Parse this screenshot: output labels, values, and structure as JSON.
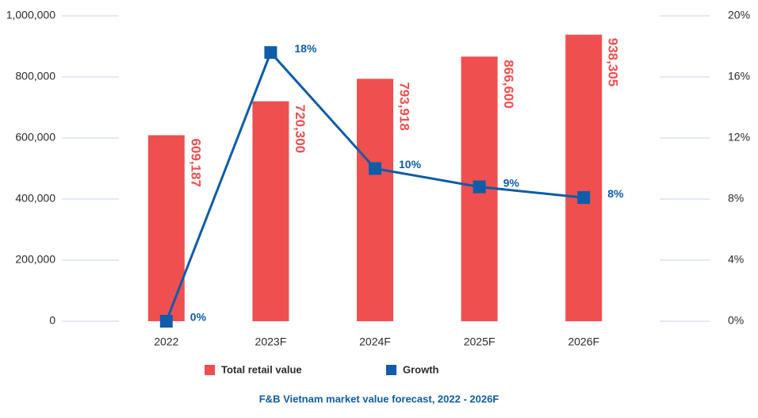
{
  "chart_data": {
    "type": "bar-line",
    "title": "F&B Vietnam market value forecast, 2022 - 2026F",
    "categories": [
      "2022",
      "2023F",
      "2024F",
      "2025F",
      "2026F"
    ],
    "series": [
      {
        "name": "Total retail value",
        "type": "bar",
        "color": "#ef4f4f",
        "values": [
          609187,
          720300,
          793918,
          866600,
          938305
        ],
        "value_labels": [
          "609,187",
          "720,300",
          "793,918",
          "866,600",
          "938,305"
        ]
      },
      {
        "name": "Growth",
        "type": "line",
        "axis": "y2",
        "color": "#0f5ca8",
        "values": [
          0,
          17.6,
          10.0,
          8.8,
          8.1
        ],
        "value_labels": [
          "0%",
          "18%",
          "10%",
          "9%",
          "8%"
        ]
      }
    ],
    "ylim": [
      0,
      1000000
    ],
    "yticks": [
      0,
      {
        "value": 200000,
        "label": "200,000"
      },
      {
        "value": 400000,
        "label": "400,000"
      },
      {
        "value": 600000,
        "label": "600,000"
      },
      {
        "value": 800000,
        "label": "800,000"
      },
      {
        "value": 1000000,
        "label": "1,000,000"
      }
    ],
    "y2lim": [
      0,
      20
    ],
    "y2ticks": [
      {
        "value": 0,
        "label": "0%"
      },
      {
        "value": 4,
        "label": "4%"
      },
      {
        "value": 8,
        "label": "8%"
      },
      {
        "value": 12,
        "label": "12%"
      },
      {
        "value": 16,
        "label": "16%"
      },
      {
        "value": 20,
        "label": "20%"
      }
    ],
    "grid": true
  }
}
